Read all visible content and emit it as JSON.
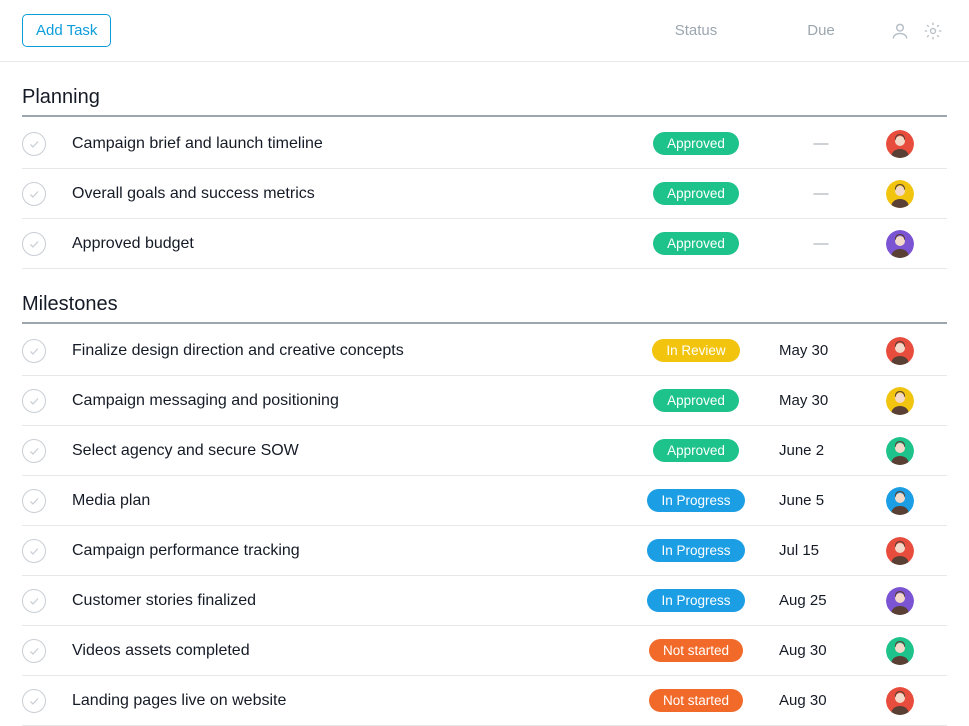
{
  "header": {
    "add_task_label": "Add Task",
    "columns": {
      "status": "Status",
      "due": "Due"
    }
  },
  "status_styles": {
    "Approved": {
      "bg": "#1ec28b",
      "fg": "#ffffff"
    },
    "In Review": {
      "bg": "#f2c40e",
      "fg": "#ffffff"
    },
    "In Progress": {
      "bg": "#1b9ee4",
      "fg": "#ffffff"
    },
    "Not started": {
      "bg": "#f26a2a",
      "fg": "#ffffff"
    }
  },
  "avatars": {
    "a": {
      "bg": "#e74c3c"
    },
    "b": {
      "bg": "#f1c40f"
    },
    "c": {
      "bg": "#7b54d3"
    },
    "d": {
      "bg": "#1ec28b"
    },
    "e": {
      "bg": "#1b9ee4"
    }
  },
  "empty_due_glyph": "—",
  "sections": [
    {
      "title": "Planning",
      "tasks": [
        {
          "name": "Campaign brief and launch timeline",
          "status": "Approved",
          "due": "",
          "avatar": "a"
        },
        {
          "name": "Overall goals and success metrics",
          "status": "Approved",
          "due": "",
          "avatar": "b"
        },
        {
          "name": "Approved budget",
          "status": "Approved",
          "due": "",
          "avatar": "c"
        }
      ]
    },
    {
      "title": "Milestones",
      "tasks": [
        {
          "name": "Finalize design direction and creative concepts",
          "status": "In Review",
          "due": "May 30",
          "avatar": "a"
        },
        {
          "name": "Campaign messaging and positioning",
          "status": "Approved",
          "due": "May 30",
          "avatar": "b"
        },
        {
          "name": "Select agency and secure SOW",
          "status": "Approved",
          "due": "June 2",
          "avatar": "d"
        },
        {
          "name": "Media plan",
          "status": "In Progress",
          "due": "June 5",
          "avatar": "e"
        },
        {
          "name": "Campaign performance tracking",
          "status": "In Progress",
          "due": "Jul 15",
          "avatar": "a"
        },
        {
          "name": "Customer stories finalized",
          "status": "In Progress",
          "due": "Aug 25",
          "avatar": "c"
        },
        {
          "name": "Videos assets completed",
          "status": "Not started",
          "due": "Aug 30",
          "avatar": "d"
        },
        {
          "name": "Landing pages live on website",
          "status": "Not started",
          "due": "Aug 30",
          "avatar": "a"
        }
      ]
    }
  ]
}
